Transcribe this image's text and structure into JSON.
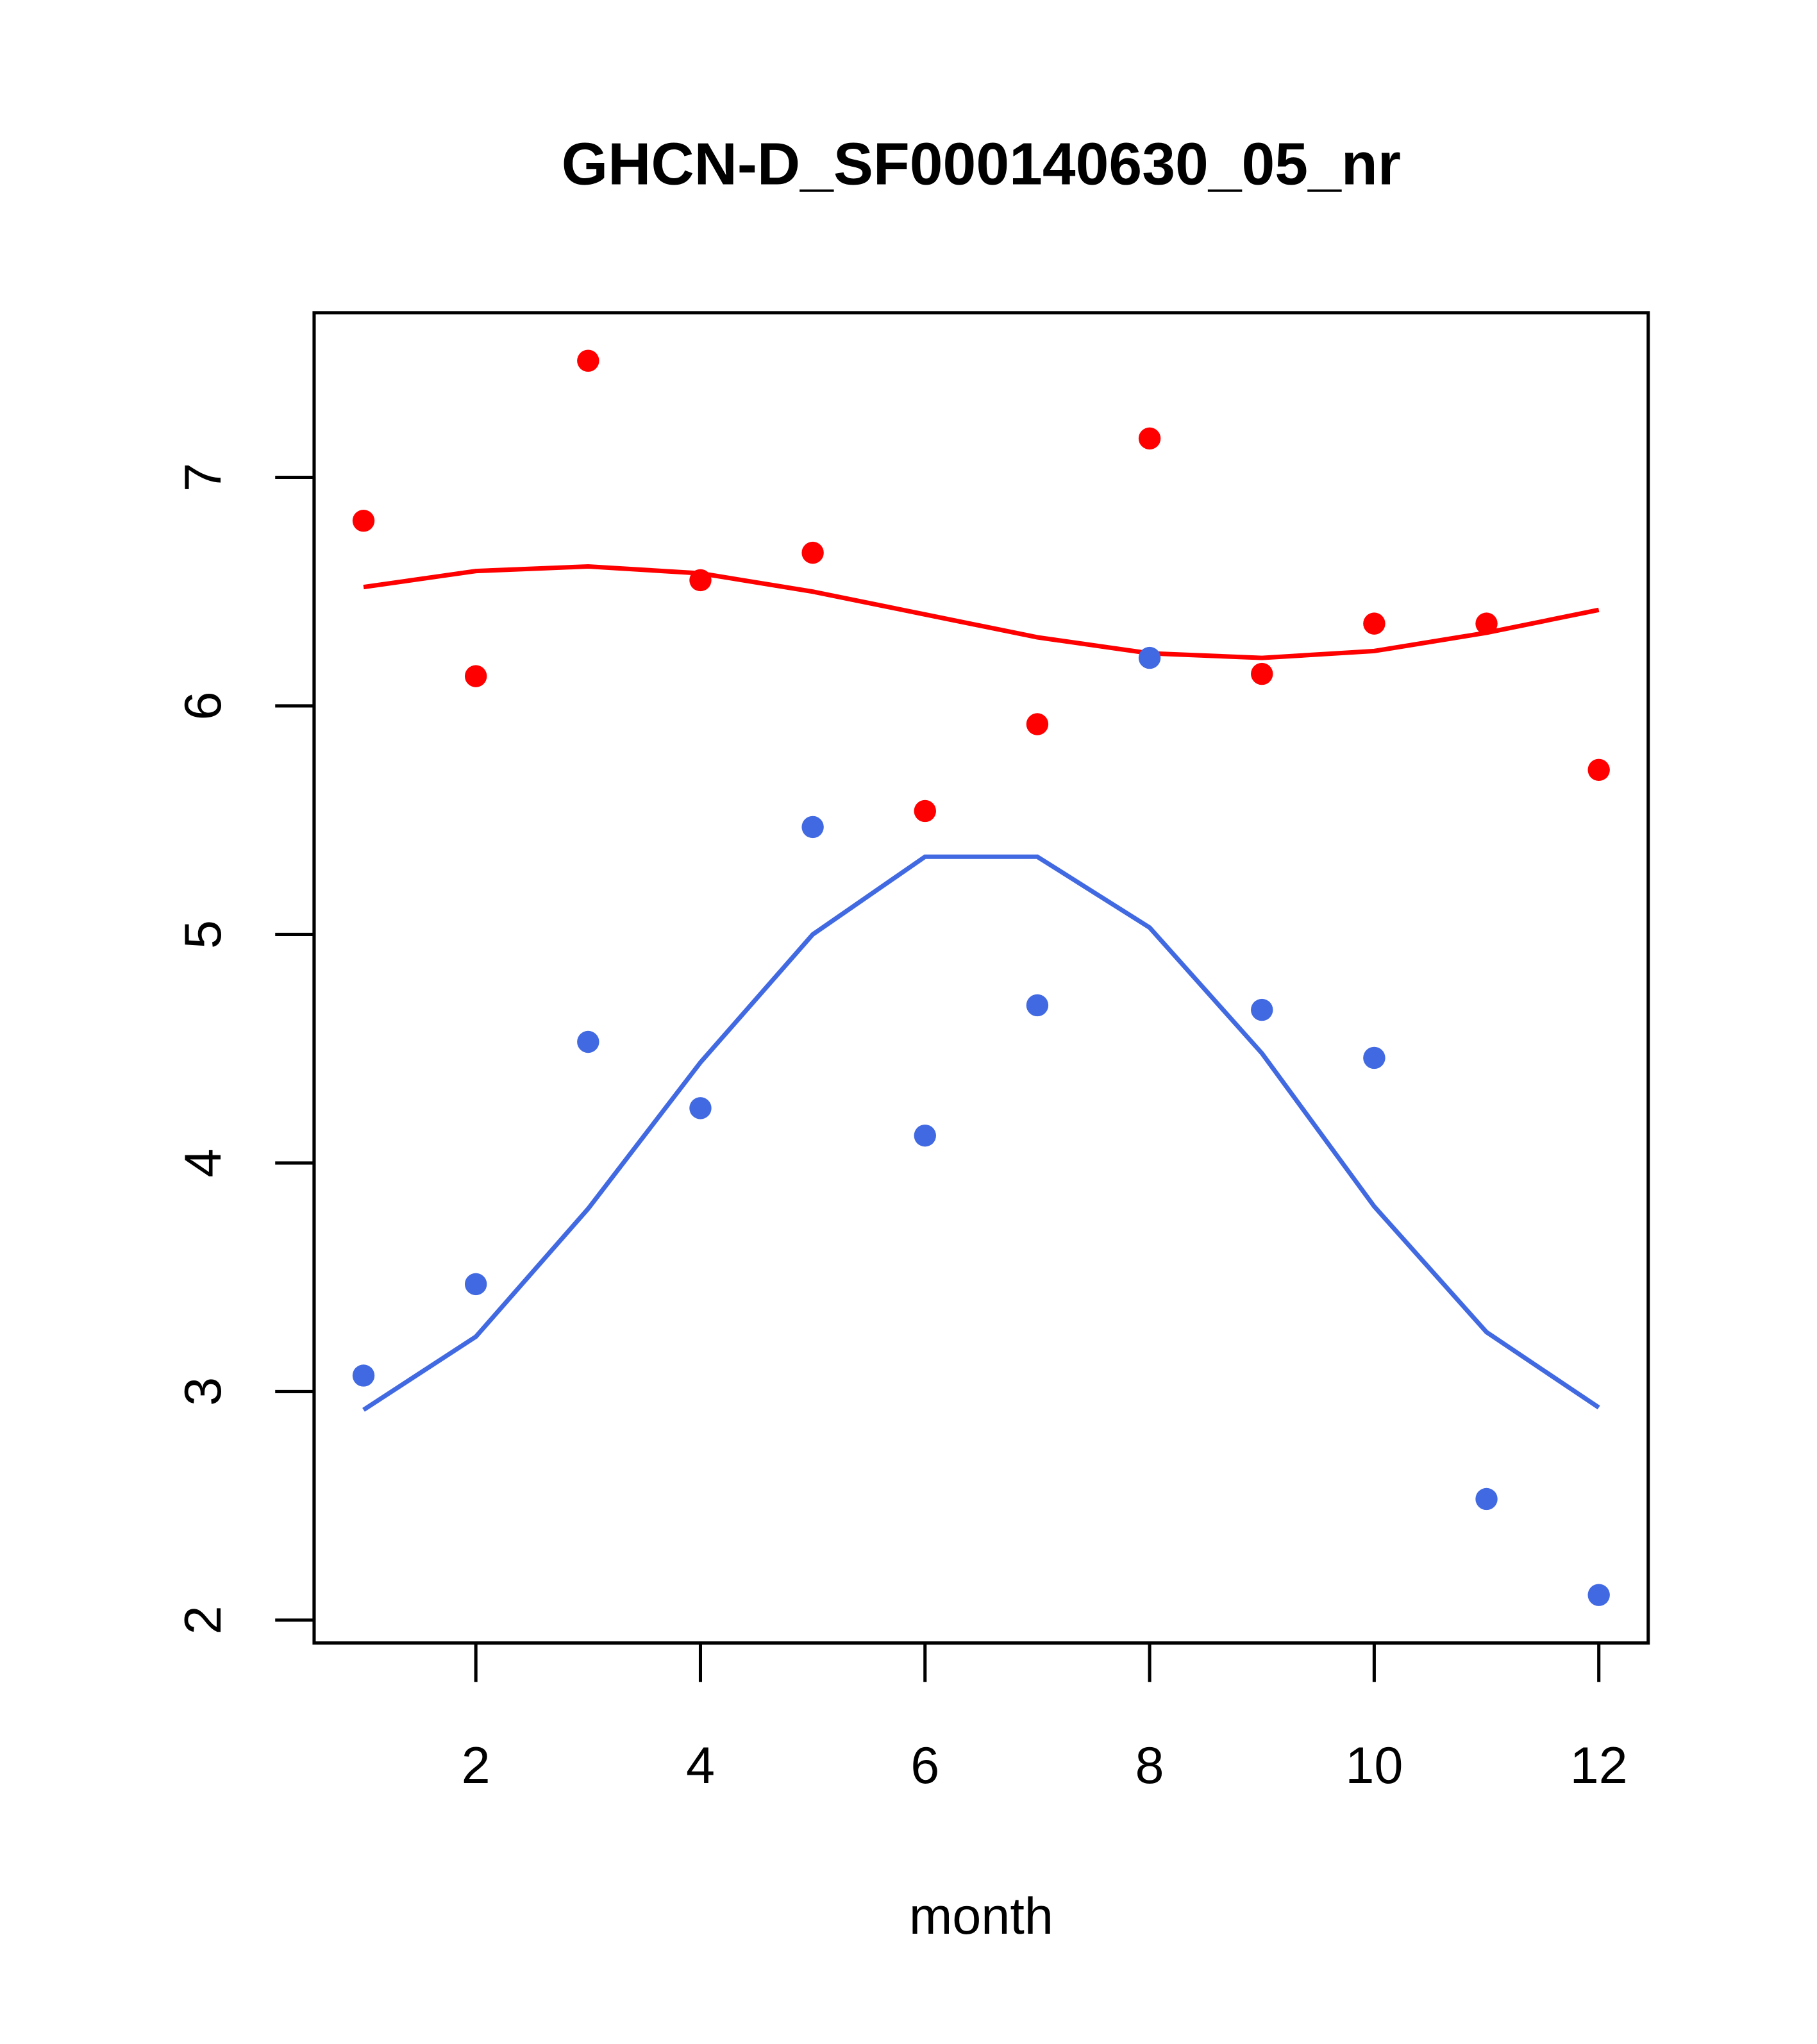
{
  "chart_data": {
    "type": "scatter",
    "title": "GHCN-D_SF000140630_05_nr",
    "xlabel": "month",
    "ylabel": "",
    "xlim": [
      0.56,
      12.44
    ],
    "ylim": [
      1.9,
      7.72
    ],
    "xticks": [
      2,
      4,
      6,
      8,
      10,
      12
    ],
    "yticks": [
      2,
      3,
      4,
      5,
      6,
      7
    ],
    "grid": false,
    "x": [
      1,
      2,
      3,
      4,
      5,
      6,
      7,
      8,
      9,
      10,
      11,
      12
    ],
    "series": [
      {
        "name": "red points",
        "kind": "points",
        "color": "#ff0000",
        "values": [
          6.81,
          6.13,
          7.51,
          6.55,
          6.67,
          5.54,
          5.92,
          7.17,
          6.14,
          6.36,
          6.36,
          5.72
        ]
      },
      {
        "name": "red fit",
        "kind": "line",
        "color": "#ff0000",
        "values": [
          6.52,
          6.59,
          6.61,
          6.58,
          6.5,
          6.4,
          6.3,
          6.23,
          6.21,
          6.24,
          6.32,
          6.42
        ]
      },
      {
        "name": "blue points",
        "kind": "points",
        "color": "#4169e1",
        "values": [
          3.07,
          3.47,
          4.53,
          4.24,
          5.47,
          4.12,
          4.69,
          6.21,
          4.67,
          4.46,
          2.53,
          2.11
        ]
      },
      {
        "name": "blue fit",
        "kind": "line",
        "color": "#4169e1",
        "values": [
          2.92,
          3.24,
          3.8,
          4.44,
          5.0,
          5.34,
          5.34,
          5.03,
          4.48,
          3.81,
          3.26,
          2.93
        ]
      }
    ]
  }
}
